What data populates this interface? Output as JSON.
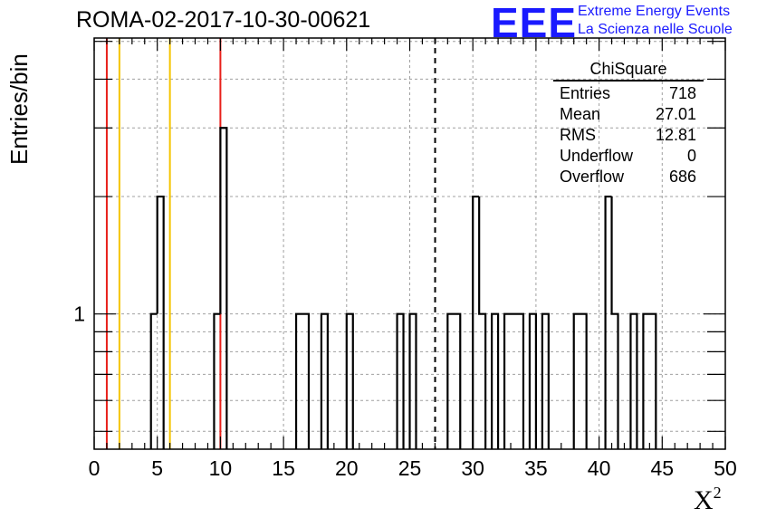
{
  "page": {
    "title": "ROMA-02-2017-10-30-00621",
    "ylabel": "Entries/bin",
    "xlabel_base": "X",
    "xlabel_sup": "2"
  },
  "logo": {
    "mark": "EEE",
    "line1": "Extreme Energy Events",
    "line2": "La Scienza nelle Scuole",
    "color": "#1a1aff"
  },
  "stats": {
    "header": "ChiSquare",
    "rows": [
      {
        "label": "Entries",
        "value": "718"
      },
      {
        "label": "Mean",
        "value": "27.01"
      },
      {
        "label": "RMS",
        "value": "12.81"
      },
      {
        "label": "Underflow",
        "value": "0"
      },
      {
        "label": "Overflow",
        "value": "686"
      }
    ]
  },
  "chart_data": {
    "type": "histogram",
    "title": "ROMA-02-2017-10-30-00621",
    "xlabel": "X²",
    "ylabel": "Entries/bin",
    "xlim": [
      0,
      50
    ],
    "ylog": true,
    "ylim_log": [
      0.45,
      5.1
    ],
    "grid": true,
    "bin_width": 0.5,
    "x_ticks": [
      "0",
      "5",
      "10",
      "15",
      "20",
      "25",
      "30",
      "35",
      "40",
      "45",
      "50"
    ],
    "y_tick_labels": [
      {
        "value": 1,
        "label": "1"
      }
    ],
    "bins": [
      {
        "x": 4.5,
        "count": 1
      },
      {
        "x": 5.0,
        "count": 2
      },
      {
        "x": 9.5,
        "count": 1
      },
      {
        "x": 10.0,
        "count": 3
      },
      {
        "x": 16.0,
        "count": 1
      },
      {
        "x": 16.5,
        "count": 1
      },
      {
        "x": 18.0,
        "count": 1
      },
      {
        "x": 20.0,
        "count": 1
      },
      {
        "x": 24.0,
        "count": 1
      },
      {
        "x": 25.0,
        "count": 1
      },
      {
        "x": 28.0,
        "count": 1
      },
      {
        "x": 28.5,
        "count": 1
      },
      {
        "x": 30.0,
        "count": 2
      },
      {
        "x": 30.5,
        "count": 1
      },
      {
        "x": 31.5,
        "count": 1
      },
      {
        "x": 32.5,
        "count": 1
      },
      {
        "x": 33.0,
        "count": 1
      },
      {
        "x": 33.5,
        "count": 1
      },
      {
        "x": 34.5,
        "count": 1
      },
      {
        "x": 35.5,
        "count": 1
      },
      {
        "x": 38.0,
        "count": 1
      },
      {
        "x": 38.5,
        "count": 1
      },
      {
        "x": 40.5,
        "count": 2
      },
      {
        "x": 41.0,
        "count": 1
      },
      {
        "x": 42.5,
        "count": 1
      },
      {
        "x": 43.5,
        "count": 1
      },
      {
        "x": 44.0,
        "count": 1
      }
    ],
    "vertical_lines": [
      {
        "x": 1,
        "color": "#e8201a",
        "style": "solid"
      },
      {
        "x": 2,
        "color": "#f5c400",
        "style": "solid"
      },
      {
        "x": 6,
        "color": "#f5c400",
        "style": "solid"
      },
      {
        "x": 10,
        "color": "#e8201a",
        "style": "solid"
      },
      {
        "x": 27.01,
        "color": "#000000",
        "style": "dashed"
      }
    ]
  }
}
